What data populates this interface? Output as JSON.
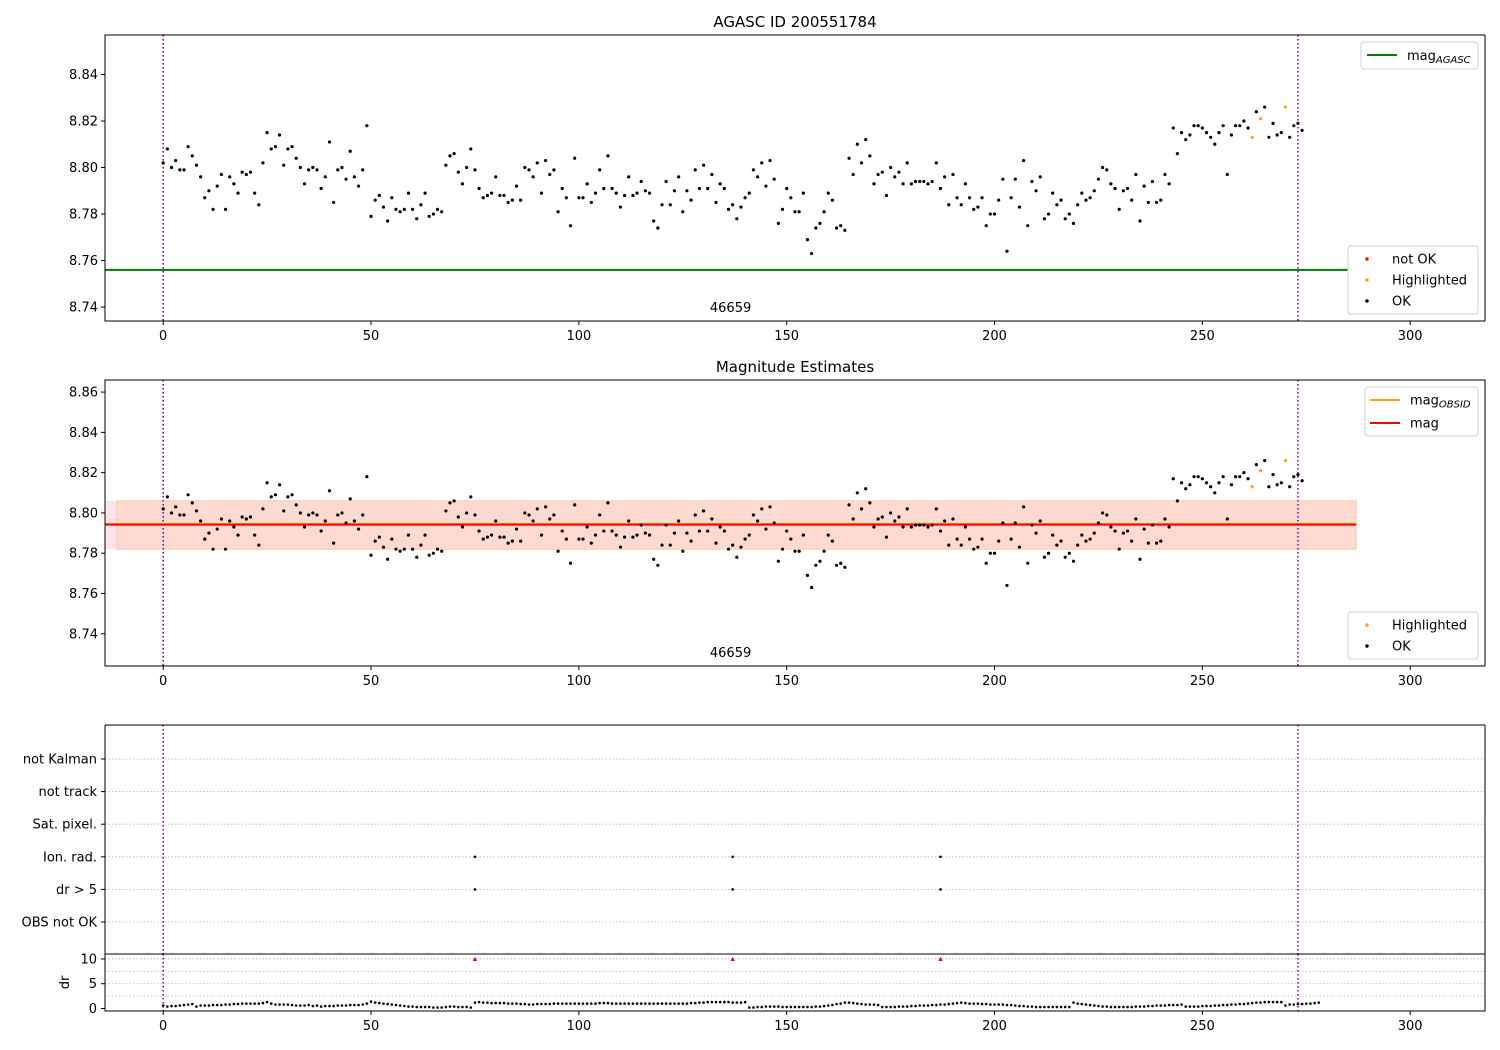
{
  "colors": {
    "ok": "#000000",
    "highlighted": "#ffa500",
    "not_ok": "#ff0000",
    "mag_agasc_line": "#008000",
    "mag_obsid_line": "#ffa500",
    "mag_line": "#ff0000",
    "band_fill": "#ffdad2",
    "band_outer": "#ffe4ea",
    "obs_boundary": "#800080",
    "grid": "#b0b0b0"
  },
  "chart_data": [
    {
      "type": "scatter",
      "title": "AGASC ID 200551784",
      "xlim": [
        -14,
        318
      ],
      "ylim": [
        8.734,
        8.857
      ],
      "xticks": [
        0,
        50,
        100,
        150,
        200,
        250,
        300
      ],
      "yticks": [
        8.74,
        8.76,
        8.78,
        8.8,
        8.82,
        8.84
      ],
      "obs_boundaries": [
        0,
        273
      ],
      "obsid_label": "46659",
      "obsid_label_x": 136.5,
      "hlines": [
        {
          "name": "mag_AGASC",
          "y": 8.756,
          "x": [
            -14,
            287
          ],
          "color": "#008000"
        }
      ],
      "legend_lines": [
        {
          "label": "mag",
          "sub": "AGASC",
          "color": "#008000"
        }
      ],
      "legend_markers": [
        {
          "label": "not OK",
          "color": "#ff0000"
        },
        {
          "label": "Highlighted",
          "color": "#ffa500"
        },
        {
          "label": "OK",
          "color": "#000000"
        }
      ],
      "grid": false
    },
    {
      "type": "scatter",
      "title": "Magnitude Estimates",
      "xlim": [
        -14,
        318
      ],
      "ylim": [
        8.724,
        8.866
      ],
      "xticks": [
        0,
        50,
        100,
        150,
        200,
        250,
        300
      ],
      "yticks": [
        8.74,
        8.76,
        8.78,
        8.8,
        8.82,
        8.84,
        8.86
      ],
      "obs_boundaries": [
        0,
        273
      ],
      "obsid_label": "46659",
      "obsid_label_x": 136.5,
      "band": {
        "y": [
          8.782,
          8.806
        ],
        "x": [
          -14,
          287
        ]
      },
      "hlines": [
        {
          "name": "mag_OBSID",
          "y": 8.7945,
          "x": [
            -14,
            287
          ],
          "color": "#ffa500"
        },
        {
          "name": "mag",
          "y": 8.7942,
          "x": [
            -14,
            287
          ],
          "color": "#ff0000"
        }
      ],
      "legend_lines": [
        {
          "label": "mag",
          "sub": "OBSID",
          "color": "#ffa500"
        },
        {
          "label": "mag",
          "sub": "",
          "color": "#ff0000"
        }
      ],
      "legend_markers": [
        {
          "label": "Highlighted",
          "color": "#ffa500"
        },
        {
          "label": "OK",
          "color": "#000000"
        }
      ],
      "grid": false
    },
    {
      "type": "scatter",
      "title": "",
      "xlim": [
        -14,
        318
      ],
      "xticks": [
        0,
        50,
        100,
        150,
        200,
        250,
        300
      ],
      "obs_boundaries": [
        0,
        273
      ],
      "flag_rows": [
        "not Kalman",
        "not track",
        "Sat. pixel.",
        "Ion. rad.",
        "dr > 5",
        "OBS not OK"
      ],
      "flag_points": [
        {
          "row": "Ion. rad.",
          "x": [
            75,
            137,
            187
          ]
        },
        {
          "row": "dr > 5",
          "x": [
            75,
            137,
            187
          ]
        }
      ],
      "dr_ylabel": "dr",
      "dr_yticks": [
        0,
        5,
        10
      ],
      "dr_ylim": [
        -0.5,
        11
      ],
      "dr_outliers": {
        "x": [
          75,
          137,
          187
        ],
        "y": [
          10,
          10,
          10
        ],
        "color": "#ff0000"
      },
      "grid": true
    }
  ],
  "mag_points": {
    "x_start": 0,
    "values": [
      8.802,
      8.808,
      8.8,
      8.803,
      8.799,
      8.799,
      8.809,
      8.805,
      8.801,
      8.796,
      8.787,
      8.79,
      8.782,
      8.792,
      8.797,
      8.782,
      8.796,
      8.793,
      8.789,
      8.798,
      8.797,
      8.798,
      8.789,
      8.784,
      8.802,
      8.815,
      8.808,
      8.809,
      8.814,
      8.801,
      8.808,
      8.809,
      8.804,
      8.8,
      8.793,
      8.799,
      8.8,
      8.799,
      8.791,
      8.796,
      8.811,
      8.785,
      8.799,
      8.8,
      8.795,
      8.807,
      8.796,
      8.792,
      8.799,
      8.818,
      8.779,
      8.786,
      8.788,
      8.783,
      8.777,
      8.787,
      8.782,
      8.781,
      8.782,
      8.789,
      8.782,
      8.778,
      8.784,
      8.789,
      8.779,
      8.78,
      8.782,
      8.781,
      8.801,
      8.805,
      8.806,
      8.798,
      8.793,
      8.8,
      8.808,
      8.799,
      8.791,
      8.787,
      8.788,
      8.789,
      8.796,
      8.788,
      8.788,
      8.785,
      8.786,
      8.792,
      8.786,
      8.8,
      8.799,
      8.796,
      8.802,
      8.789,
      8.803,
      8.797,
      8.799,
      8.781,
      8.791,
      8.787,
      8.775,
      8.804,
      8.787,
      8.787,
      8.793,
      8.785,
      8.789,
      8.799,
      8.791,
      8.805,
      8.791,
      8.789,
      8.783,
      8.788,
      8.796,
      8.788,
      8.789,
      8.794,
      8.79,
      8.789,
      8.777,
      8.774,
      8.784,
      8.794,
      8.784,
      8.79,
      8.796,
      8.781,
      8.79,
      8.786,
      8.799,
      8.791,
      8.801,
      8.791,
      8.797,
      8.785,
      8.793,
      8.791,
      8.782,
      8.784,
      8.778,
      8.783,
      8.787,
      8.789,
      8.799,
      8.796,
      8.802,
      8.792,
      8.803,
      8.795,
      8.776,
      8.782,
      8.791,
      8.787,
      8.781,
      8.781,
      8.789,
      8.769,
      8.763,
      8.774,
      8.776,
      8.781,
      8.789,
      8.786,
      8.774,
      8.775,
      8.773,
      8.804,
      8.797,
      8.81,
      8.802,
      8.812,
      8.805,
      8.793,
      8.797,
      8.798,
      8.788,
      8.8,
      8.796,
      8.798,
      8.793,
      8.802,
      8.793,
      8.794,
      8.794,
      8.794,
      8.793,
      8.794,
      8.802,
      8.791,
      8.796,
      8.784,
      8.797,
      8.787,
      8.784,
      8.793,
      8.787,
      8.782,
      8.783,
      8.787,
      8.775,
      8.78,
      8.78,
      8.786,
      8.795,
      8.764,
      8.787,
      8.795,
      8.783,
      8.803,
      8.775,
      8.794,
      8.79,
      8.796,
      8.778,
      8.78,
      8.789,
      8.784,
      8.786,
      8.778,
      8.78,
      8.776,
      8.784,
      8.789,
      8.786,
      8.787,
      8.79,
      8.795,
      8.8,
      8.799,
      8.793,
      8.791,
      8.782,
      8.79,
      8.791,
      8.786,
      8.797,
      8.777,
      8.792,
      8.785,
      8.794,
      8.785,
      8.786,
      8.797,
      8.793,
      8.817,
      8.806,
      8.815,
      8.812,
      8.814,
      8.818,
      8.818,
      8.817,
      8.815,
      8.813,
      8.81,
      8.815,
      8.818,
      8.797,
      8.814,
      8.818,
      8.818,
      8.82,
      8.817,
      8.813,
      8.824,
      8.821,
      8.826,
      8.813,
      8.819,
      8.814,
      8.815,
      8.826,
      8.813,
      8.818,
      8.819,
      8.816
    ],
    "highlighted_x": [
      262,
      264,
      270
    ]
  },
  "dr_points": {
    "x_start": 0,
    "values": [
      0.6,
      0.4,
      0.5,
      0.5,
      0.6,
      0.7,
      0.8,
      0.9,
      0.4,
      0.6,
      0.6,
      0.6,
      0.7,
      0.7,
      0.7,
      0.8,
      0.8,
      0.9,
      0.9,
      1.0,
      1.0,
      1.0,
      1.0,
      1.0,
      1.1,
      1.3,
      1.0,
      0.8,
      0.8,
      0.8,
      0.8,
      0.7,
      0.6,
      0.6,
      0.6,
      0.7,
      0.5,
      0.6,
      0.4,
      0.5,
      0.5,
      0.5,
      0.6,
      0.6,
      0.6,
      0.7,
      0.7,
      0.7,
      0.8,
      1.0,
      1.4,
      1.2,
      1.1,
      1.0,
      0.9,
      0.8,
      0.7,
      0.6,
      0.5,
      0.4,
      0.4,
      0.3,
      0.3,
      0.3,
      0.3,
      0.2,
      0.2,
      0.2,
      0.3,
      0.4,
      0.4,
      0.3,
      0.3,
      0.3,
      0.2,
      1.2,
      1.3,
      1.2,
      1.2,
      1.1,
      1.1,
      1.1,
      1.1,
      1.0,
      1.0,
      1.0,
      0.9,
      0.9,
      0.8,
      0.8,
      0.9,
      0.9,
      0.9,
      0.9,
      1.0,
      1.0,
      1.0,
      1.0,
      1.0,
      1.0,
      1.0,
      1.0,
      1.0,
      1.0,
      1.0,
      1.1,
      1.1,
      1.1,
      1.0,
      1.0,
      1.0,
      1.0,
      1.0,
      1.0,
      1.0,
      1.0,
      1.0,
      1.0,
      1.0,
      1.0,
      1.0,
      1.0,
      1.0,
      1.0,
      1.0,
      1.0,
      1.0,
      1.1,
      1.1,
      1.2,
      1.2,
      1.3,
      1.3,
      1.3,
      1.3,
      1.3,
      1.3,
      1.2,
      1.2,
      1.2,
      1.3,
      0.2,
      0.2,
      0.3,
      0.3,
      0.4,
      0.4,
      0.4,
      0.4,
      0.3,
      0.3,
      0.3,
      0.3,
      0.3,
      0.3,
      0.3,
      0.3,
      0.4,
      0.4,
      0.5,
      0.6,
      0.7,
      0.9,
      1.0,
      1.2,
      1.2,
      1.1,
      1.0,
      0.9,
      0.8,
      0.8,
      0.8,
      0.7,
      0.3,
      0.3,
      0.3,
      0.3,
      0.4,
      0.4,
      0.4,
      0.5,
      0.5,
      0.6,
      0.6,
      0.6,
      0.7,
      0.7,
      0.8,
      0.8,
      0.9,
      1.0,
      1.1,
      1.2,
      1.1,
      1.0,
      1.0,
      1.0,
      0.9,
      0.9,
      0.8,
      0.8,
      0.8,
      0.8,
      0.7,
      0.7,
      0.6,
      0.5,
      0.5,
      0.4,
      0.4,
      0.3,
      0.3,
      0.3,
      0.3,
      0.3,
      0.3,
      0.3,
      0.3,
      0.3,
      1.2,
      1.0,
      0.9,
      0.8,
      0.7,
      0.6,
      0.5,
      0.4,
      0.4,
      0.3,
      0.3,
      0.3,
      0.3,
      0.3,
      0.3,
      0.4,
      0.4,
      0.4,
      0.5,
      0.5,
      0.6,
      0.6,
      0.6,
      0.7,
      0.7,
      0.7,
      0.8,
      0.4,
      0.4,
      0.4,
      0.4,
      0.5,
      0.5,
      0.5,
      0.6,
      0.6,
      0.7,
      0.7,
      0.8,
      0.8,
      0.9,
      0.9,
      1.0,
      1.1,
      1.2,
      1.2,
      1.3,
      1.3,
      1.3,
      1.3,
      1.3,
      0.6,
      0.8,
      0.8,
      0.9,
      0.9,
      1.0,
      1.0,
      1.1,
      1.2
    ]
  }
}
